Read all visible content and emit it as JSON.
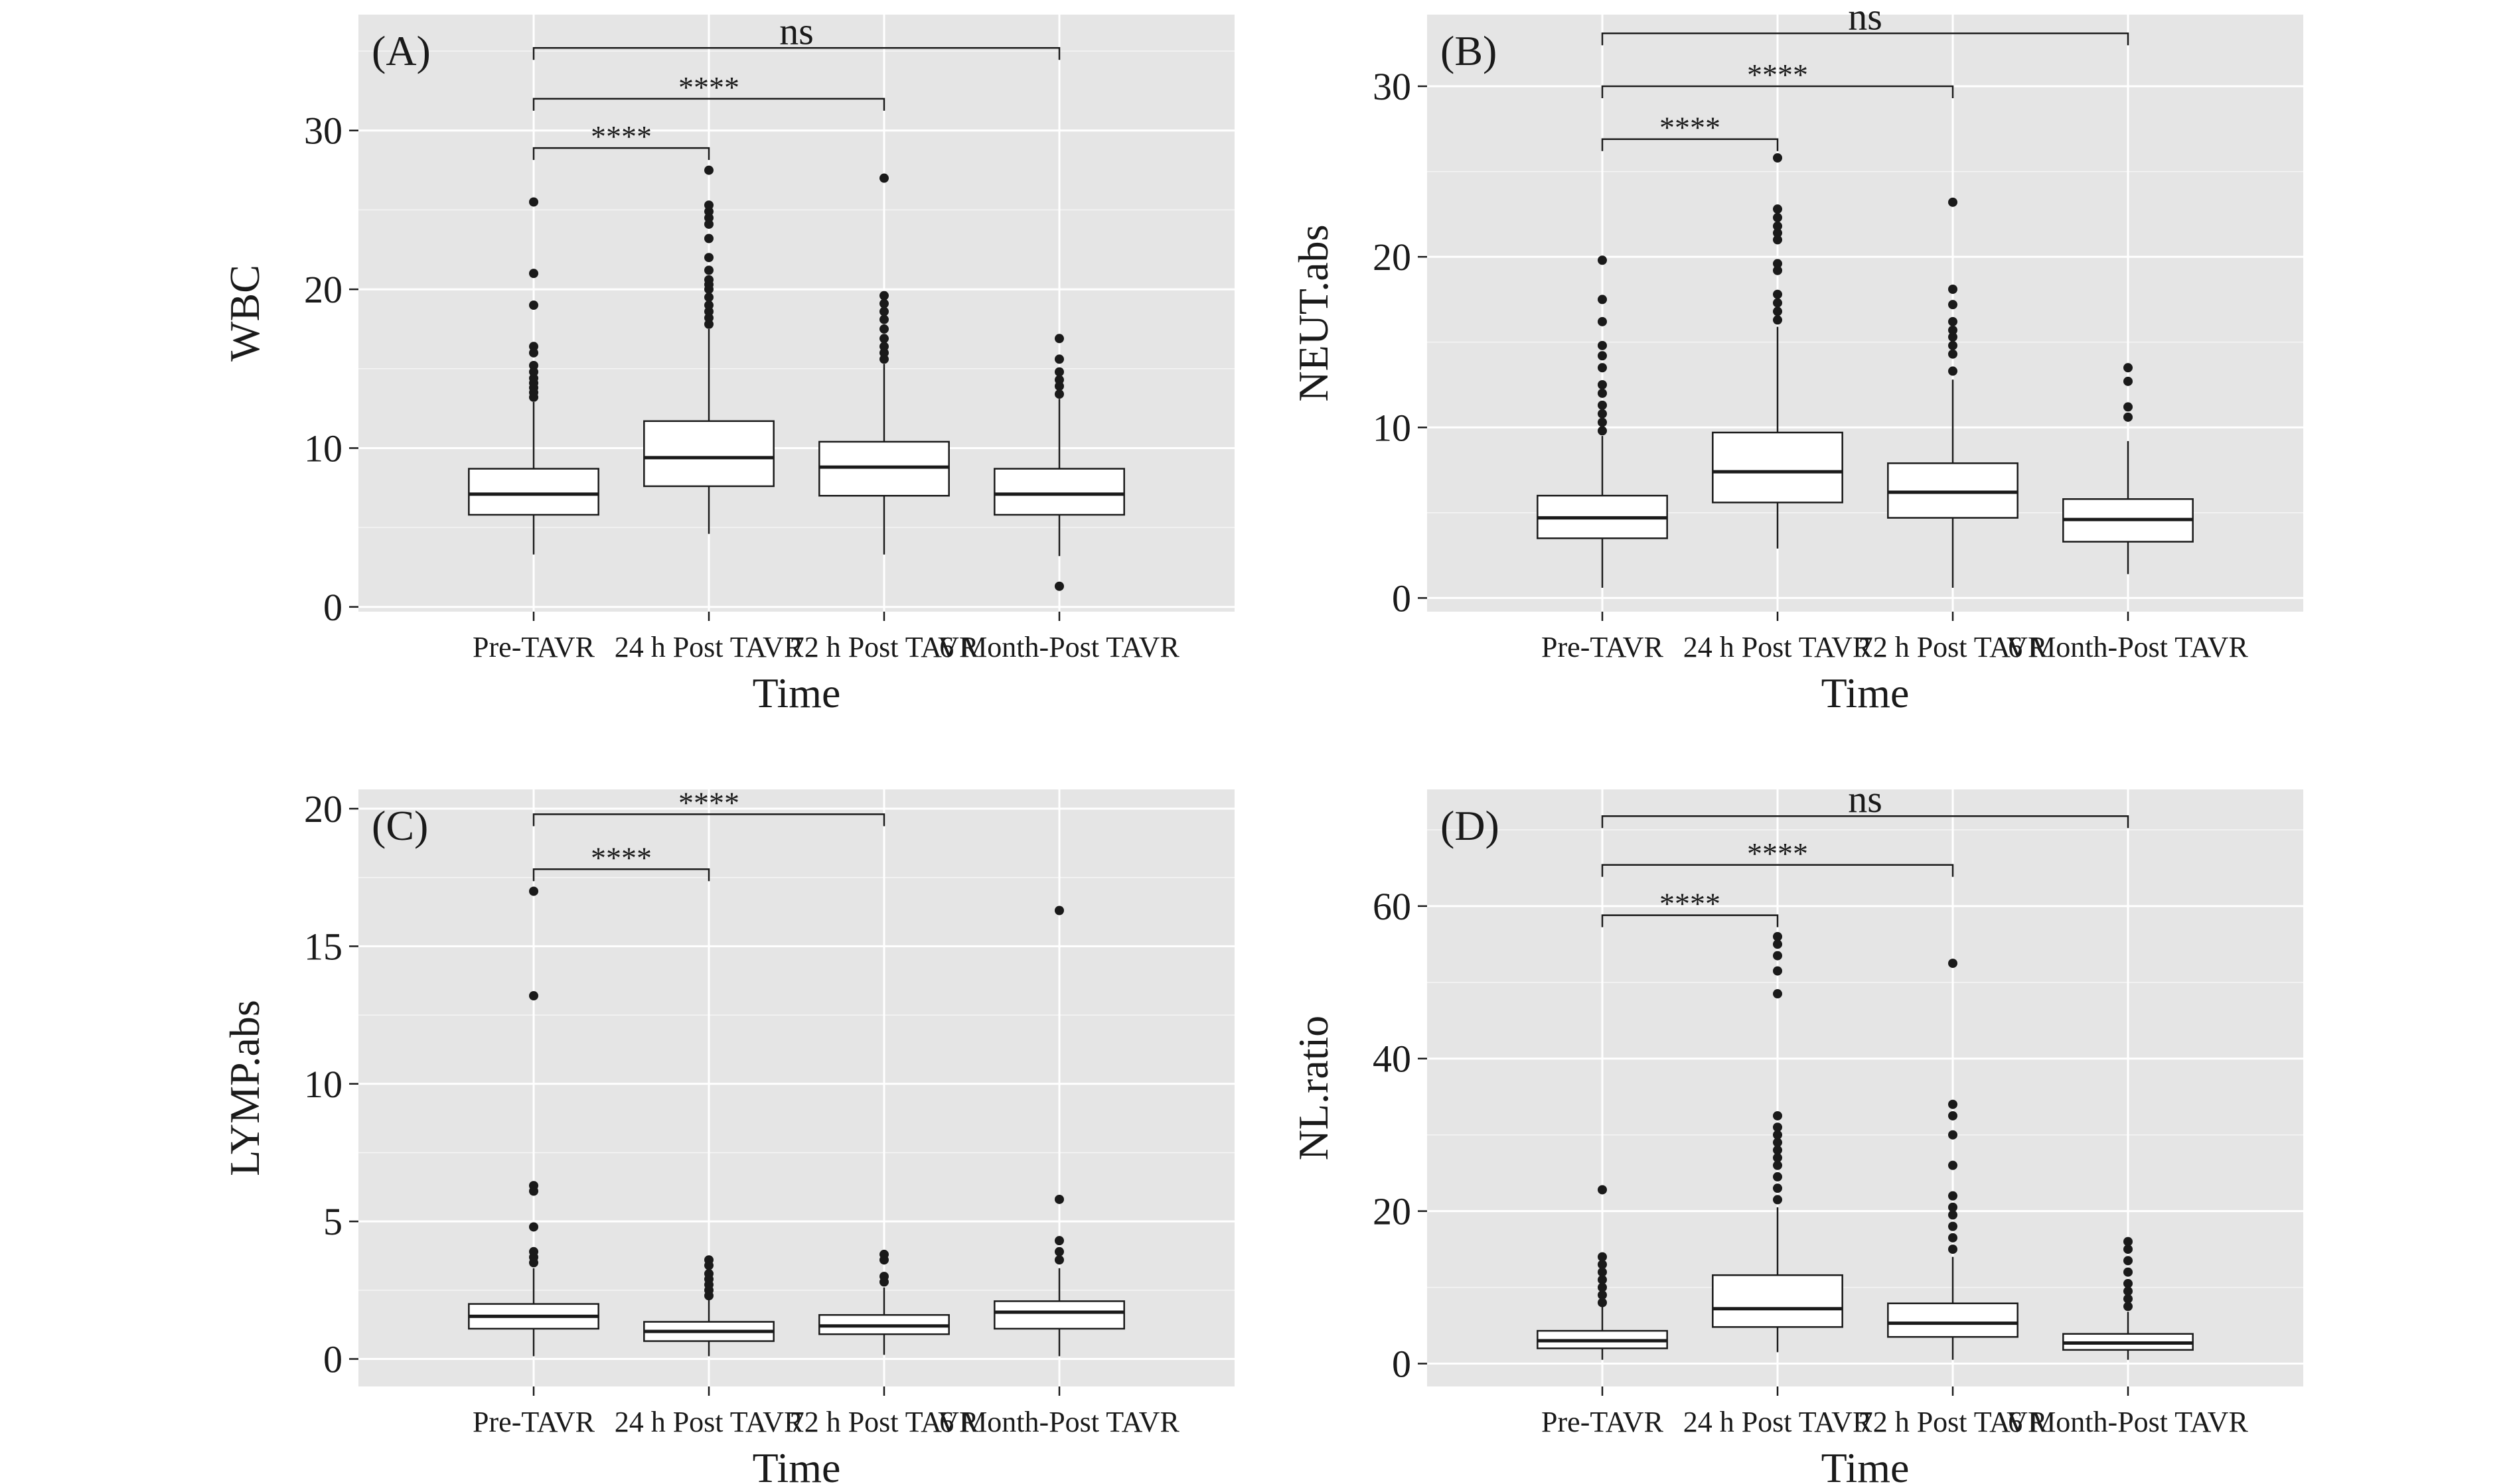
{
  "colors": {
    "panel_bg": "#e5e5e5",
    "grid_major": "#ffffff",
    "box_fill": "#ffffff",
    "line": "#1a1a1a",
    "outlier": "#1a1a1a"
  },
  "chart_data": [
    {
      "type": "box",
      "panel_label": "(A)",
      "xlabel": "Time",
      "ylabel": "WBC",
      "categories": [
        "Pre-TAVR",
        "24 h Post TAVR",
        "72 h Post TAVR",
        "6 Month-Post TAVR"
      ],
      "ylim": [
        -0.3,
        37.3
      ],
      "yticks": [
        0,
        10,
        20,
        30
      ],
      "grid": true,
      "boxes": [
        {
          "lower_whisker": 3.3,
          "q1": 5.8,
          "median": 7.1,
          "q3": 8.7,
          "upper_whisker": 12.9,
          "outliers": [
            13.2,
            13.5,
            13.8,
            14.1,
            14.4,
            14.8,
            15.2,
            16.0,
            16.4,
            19.0,
            21.0,
            25.5
          ]
        },
        {
          "lower_whisker": 4.6,
          "q1": 7.6,
          "median": 9.4,
          "q3": 11.7,
          "upper_whisker": 17.5,
          "outliers": [
            17.8,
            18.2,
            18.6,
            19.0,
            19.5,
            20.0,
            20.3,
            20.6,
            21.2,
            22.0,
            23.2,
            24.1,
            24.5,
            24.9,
            25.3,
            27.5
          ]
        },
        {
          "lower_whisker": 3.3,
          "q1": 7.0,
          "median": 8.8,
          "q3": 10.4,
          "upper_whisker": 15.3,
          "outliers": [
            15.6,
            16.0,
            16.4,
            16.9,
            17.5,
            18.1,
            18.6,
            19.1,
            19.6,
            27.0
          ]
        },
        {
          "lower_whisker": 3.2,
          "q1": 5.8,
          "median": 7.1,
          "q3": 8.7,
          "upper_whisker": 13.1,
          "outliers": [
            1.3,
            13.4,
            13.9,
            14.3,
            14.8,
            15.6,
            16.9
          ]
        }
      ],
      "comparisons": [
        {
          "from": 0,
          "to": 1,
          "label": "****",
          "y": 28.9
        },
        {
          "from": 0,
          "to": 2,
          "label": "****",
          "y": 32.0
        },
        {
          "from": 0,
          "to": 3,
          "label": "ns",
          "y": 35.2
        }
      ]
    },
    {
      "type": "box",
      "panel_label": "(B)",
      "xlabel": "Time",
      "ylabel": "NEUT.abs",
      "categories": [
        "Pre-TAVR",
        "24 h Post TAVR",
        "72 h Post TAVR",
        "6 Month-Post TAVR"
      ],
      "ylim": [
        -0.8,
        34.2
      ],
      "yticks": [
        0,
        10,
        20,
        30
      ],
      "grid": true,
      "boxes": [
        {
          "lower_whisker": 0.6,
          "q1": 3.5,
          "median": 4.7,
          "q3": 6.0,
          "upper_whisker": 9.5,
          "outliers": [
            9.8,
            10.3,
            10.8,
            11.3,
            12.0,
            12.5,
            13.5,
            14.2,
            14.8,
            16.2,
            17.5,
            19.8
          ]
        },
        {
          "lower_whisker": 2.9,
          "q1": 5.6,
          "median": 7.4,
          "q3": 9.7,
          "upper_whisker": 15.9,
          "outliers": [
            16.3,
            16.8,
            17.3,
            17.8,
            19.2,
            19.6,
            21.0,
            21.4,
            21.8,
            22.3,
            22.8,
            25.8
          ]
        },
        {
          "lower_whisker": 0.6,
          "q1": 4.7,
          "median": 6.2,
          "q3": 7.9,
          "upper_whisker": 12.8,
          "outliers": [
            13.3,
            14.3,
            14.8,
            15.3,
            15.7,
            16.2,
            17.2,
            18.1,
            23.2
          ]
        },
        {
          "lower_whisker": 1.4,
          "q1": 3.3,
          "median": 4.6,
          "q3": 5.8,
          "upper_whisker": 9.2,
          "outliers": [
            10.6,
            11.2,
            12.7,
            13.5
          ]
        }
      ],
      "comparisons": [
        {
          "from": 0,
          "to": 1,
          "label": "****",
          "y": 26.9
        },
        {
          "from": 0,
          "to": 2,
          "label": "****",
          "y": 30.0
        },
        {
          "from": 0,
          "to": 3,
          "label": "ns",
          "y": 33.1
        }
      ]
    },
    {
      "type": "box",
      "panel_label": "(C)",
      "xlabel": "Time",
      "ylabel": "LYMP.abs",
      "categories": [
        "Pre-TAVR",
        "24 h Post TAVR",
        "72 h Post TAVR",
        "6 Month-Post TAVR"
      ],
      "ylim": [
        -1.0,
        20.7
      ],
      "yticks": [
        0,
        5,
        10,
        15,
        20
      ],
      "grid": true,
      "boxes": [
        {
          "lower_whisker": 0.1,
          "q1": 1.1,
          "median": 1.55,
          "q3": 2.0,
          "upper_whisker": 3.3,
          "outliers": [
            3.5,
            3.7,
            3.9,
            4.8,
            6.1,
            6.3,
            13.2,
            17.0
          ]
        },
        {
          "lower_whisker": 0.1,
          "q1": 0.65,
          "median": 1.0,
          "q3": 1.35,
          "upper_whisker": 2.2,
          "outliers": [
            2.3,
            2.5,
            2.7,
            2.9,
            3.1,
            3.4,
            3.6
          ]
        },
        {
          "lower_whisker": 0.15,
          "q1": 0.9,
          "median": 1.2,
          "q3": 1.6,
          "upper_whisker": 2.6,
          "outliers": [
            2.8,
            3.0,
            3.6,
            3.8
          ]
        },
        {
          "lower_whisker": 0.1,
          "q1": 1.1,
          "median": 1.7,
          "q3": 2.1,
          "upper_whisker": 3.3,
          "outliers": [
            3.6,
            3.9,
            4.3,
            5.8,
            16.3
          ]
        }
      ],
      "comparisons": [
        {
          "from": 0,
          "to": 1,
          "label": "****",
          "y": 17.8
        },
        {
          "from": 0,
          "to": 2,
          "label": "****",
          "y": 19.8
        }
      ]
    },
    {
      "type": "box",
      "panel_label": "(D)",
      "xlabel": "Time",
      "ylabel": "NL.ratio",
      "categories": [
        "Pre-TAVR",
        "24 h Post TAVR",
        "72 h Post TAVR",
        "6 Month-Post TAVR"
      ],
      "ylim": [
        -3.0,
        75.3
      ],
      "yticks": [
        0,
        20,
        40,
        60
      ],
      "grid": true,
      "boxes": [
        {
          "lower_whisker": 0.5,
          "q1": 2.0,
          "median": 3.0,
          "q3": 4.3,
          "upper_whisker": 7.5,
          "outliers": [
            8.0,
            9.0,
            10.0,
            11.0,
            12.0,
            13.0,
            14.0,
            22.8
          ]
        },
        {
          "lower_whisker": 1.5,
          "q1": 4.8,
          "median": 7.2,
          "q3": 11.6,
          "upper_whisker": 20.5,
          "outliers": [
            21.5,
            23.0,
            24.5,
            26.0,
            27.0,
            28.0,
            29.0,
            30.0,
            31.0,
            32.5,
            48.5,
            51.5,
            53.5,
            55.0,
            56.0
          ]
        },
        {
          "lower_whisker": 0.5,
          "q1": 3.5,
          "median": 5.3,
          "q3": 7.9,
          "upper_whisker": 14.0,
          "outliers": [
            15.0,
            16.5,
            18.0,
            19.5,
            20.5,
            22.0,
            26.0,
            30.0,
            32.5,
            34.0,
            52.5
          ]
        },
        {
          "lower_whisker": 0.5,
          "q1": 1.8,
          "median": 2.7,
          "q3": 3.9,
          "upper_whisker": 6.8,
          "outliers": [
            7.5,
            8.5,
            9.5,
            10.5,
            12.0,
            13.5,
            15.0,
            16.0
          ]
        }
      ],
      "comparisons": [
        {
          "from": 0,
          "to": 1,
          "label": "****",
          "y": 58.8
        },
        {
          "from": 0,
          "to": 2,
          "label": "****",
          "y": 65.4
        },
        {
          "from": 0,
          "to": 3,
          "label": "ns",
          "y": 71.8
        }
      ]
    }
  ]
}
